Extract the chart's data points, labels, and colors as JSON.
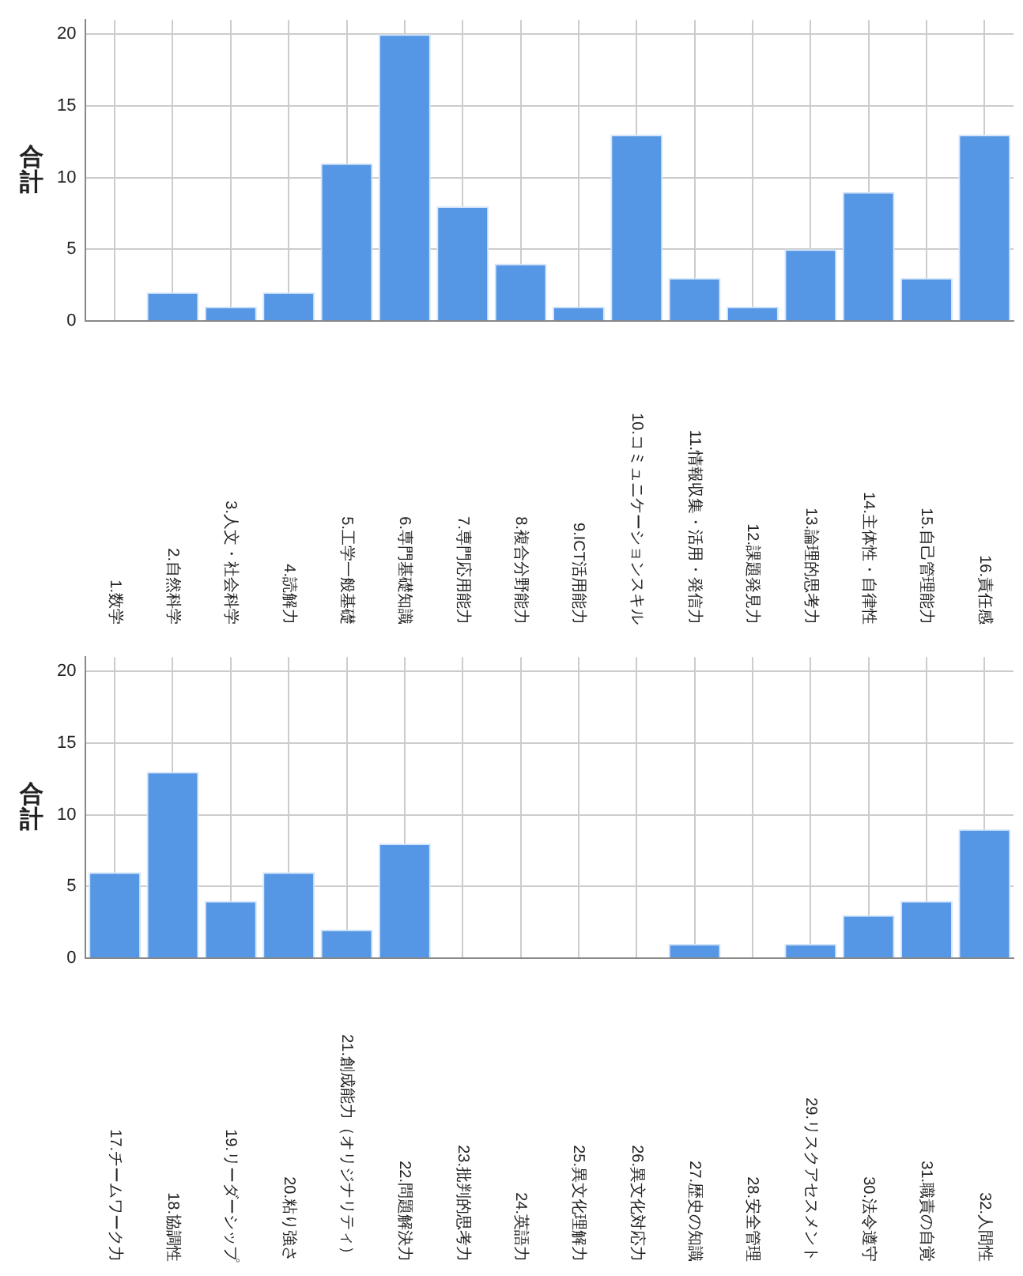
{
  "chart_data": [
    {
      "type": "bar",
      "ylabel": "合計",
      "categories": [
        "1.数学",
        "2.自然科学",
        "3.人文・社会科学",
        "4.読解力",
        "5.工学一般基礎",
        "6.専門基礎知識",
        "7.専門応用能力",
        "8.複合分野能力",
        "9.ICT活用能力",
        "10.コミュニケーションスキル",
        "11.情報収集・活用・発信力",
        "12.課題発見力",
        "13.論理的思考力",
        "14.主体性・自律性",
        "15.自己管理能力",
        "16.責任感"
      ],
      "values": [
        0,
        2,
        1,
        2,
        11,
        20,
        8,
        4,
        1,
        13,
        3,
        1,
        5,
        9,
        3,
        13
      ],
      "color": "#5596e5",
      "ylim": [
        0,
        21
      ],
      "yticks": [
        0,
        5,
        10,
        15,
        20
      ],
      "grid": true
    },
    {
      "type": "bar",
      "ylabel": "合計",
      "categories": [
        "17.チームワーク力",
        "18.協調性",
        "19.リーダーシップ",
        "20.粘り強さ",
        "21.創成能力（オリジナリティ）",
        "22.問題解決力",
        "23.批判的思考力",
        "24.英語力",
        "25.異文化理解力",
        "26.異文化対応力",
        "27.歴史の知識",
        "28.安全管理",
        "29.リスクアセスメント",
        "30.法令遵守",
        "31.職責の自覚",
        "32.人間性"
      ],
      "values": [
        6,
        13,
        4,
        6,
        2,
        8,
        0,
        0,
        0,
        0,
        1,
        0,
        1,
        3,
        4,
        9
      ],
      "color": "#5596e5",
      "ylim": [
        0,
        21
      ],
      "yticks": [
        0,
        5,
        10,
        15,
        20
      ],
      "grid": true
    }
  ]
}
